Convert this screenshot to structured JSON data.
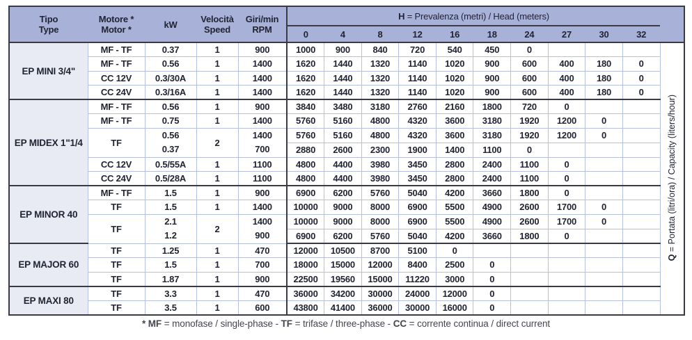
{
  "colors": {
    "header_bg": "#a8b2d8",
    "group_bg": "#e9ebf4",
    "border_dark": "#3a3a44",
    "border_light": "#b6c1de",
    "text": "#212432",
    "note": "#45454f"
  },
  "header": {
    "tipo": [
      "Tipo",
      "Type"
    ],
    "motore": [
      "Motore *",
      "Motor *"
    ],
    "kw": "kW",
    "speed": [
      "Velocità",
      "Speed"
    ],
    "rpm": [
      "Giri/min",
      "RPM"
    ],
    "h_bold": "H",
    "h_rest": " = Prevalenza (metri) / Head (meters)",
    "heads": [
      "0",
      "4",
      "8",
      "12",
      "16",
      "18",
      "24",
      "27",
      "30",
      "32"
    ]
  },
  "side": {
    "q_bold": "Q",
    "q_rest": " = Portata (litri/ora) / Capacity (liters/hour)"
  },
  "groups": [
    {
      "type": "EP MINI 3/4\"",
      "rows": [
        {
          "motor": "MF - TF",
          "kw": [
            "0.37"
          ],
          "speed": "1",
          "rpm": [
            "900"
          ],
          "data": [
            [
              "1000",
              "900",
              "840",
              "720",
              "540",
              "450",
              "0",
              "",
              "",
              ""
            ]
          ]
        },
        {
          "motor": "MF - TF",
          "kw": [
            "0.56"
          ],
          "speed": "1",
          "rpm": [
            "1400"
          ],
          "data": [
            [
              "1620",
              "1440",
              "1320",
              "1140",
              "1020",
              "900",
              "600",
              "400",
              "180",
              "0"
            ]
          ]
        },
        {
          "motor": "CC 12V",
          "kw": [
            "0.3/30A"
          ],
          "speed": "1",
          "rpm": [
            "1400"
          ],
          "data": [
            [
              "1620",
              "1440",
              "1320",
              "1140",
              "1020",
              "900",
              "600",
              "400",
              "180",
              "0"
            ]
          ]
        },
        {
          "motor": "CC 24V",
          "kw": [
            "0.3/16A"
          ],
          "speed": "1",
          "rpm": [
            "1400"
          ],
          "data": [
            [
              "1620",
              "1440",
              "1320",
              "1140",
              "1020",
              "900",
              "600",
              "400",
              "180",
              "0"
            ]
          ]
        }
      ]
    },
    {
      "type": "EP MIDEX 1\"1/4",
      "rows": [
        {
          "motor": "MF - TF",
          "kw": [
            "0.56"
          ],
          "speed": "1",
          "rpm": [
            "900"
          ],
          "data": [
            [
              "3840",
              "3480",
              "3180",
              "2760",
              "2160",
              "1800",
              "720",
              "0",
              "",
              ""
            ]
          ]
        },
        {
          "motor": "MF - TF",
          "kw": [
            "0.75"
          ],
          "speed": "1",
          "rpm": [
            "1400"
          ],
          "data": [
            [
              "5760",
              "5160",
              "4800",
              "4320",
              "3600",
              "3180",
              "1920",
              "1200",
              "0",
              ""
            ]
          ]
        },
        {
          "motor": "TF",
          "kw": [
            "0.56",
            "0.37"
          ],
          "speed": "2",
          "rpm": [
            "1400",
            "700"
          ],
          "data": [
            [
              "5760",
              "5160",
              "4800",
              "4320",
              "3600",
              "3180",
              "1920",
              "1200",
              "0",
              ""
            ],
            [
              "2880",
              "2600",
              "2300",
              "1900",
              "1400",
              "1100",
              "0",
              "",
              "",
              ""
            ]
          ]
        },
        {
          "motor": "CC 12V",
          "kw": [
            "0.5/55A"
          ],
          "speed": "1",
          "rpm": [
            "1100"
          ],
          "data": [
            [
              "4800",
              "4400",
              "3980",
              "3450",
              "2800",
              "2400",
              "1100",
              "0",
              "",
              ""
            ]
          ]
        },
        {
          "motor": "CC 24V",
          "kw": [
            "0.5/28A"
          ],
          "speed": "1",
          "rpm": [
            "1100"
          ],
          "data": [
            [
              "4800",
              "4400",
              "3980",
              "3450",
              "2800",
              "2400",
              "1100",
              "0",
              "",
              ""
            ]
          ]
        }
      ]
    },
    {
      "type": "EP MINOR 40",
      "rows": [
        {
          "motor": "MF - TF",
          "kw": [
            "1.5"
          ],
          "speed": "1",
          "rpm": [
            "900"
          ],
          "data": [
            [
              "6900",
              "6200",
              "5760",
              "5040",
              "4200",
              "3660",
              "1800",
              "0",
              "",
              ""
            ]
          ]
        },
        {
          "motor": "TF",
          "kw": [
            "1.5"
          ],
          "speed": "1",
          "rpm": [
            "1400"
          ],
          "data": [
            [
              "10000",
              "9000",
              "8000",
              "6900",
              "5500",
              "4900",
              "2600",
              "1700",
              "0",
              ""
            ]
          ]
        },
        {
          "motor": "TF",
          "kw": [
            "2.1",
            "1.2"
          ],
          "speed": "2",
          "rpm": [
            "1400",
            "900"
          ],
          "data": [
            [
              "10000",
              "9000",
              "8000",
              "6900",
              "5500",
              "4900",
              "2600",
              "1700",
              "0",
              ""
            ],
            [
              "6900",
              "6200",
              "5760",
              "5040",
              "4200",
              "3660",
              "1800",
              "0",
              "",
              ""
            ]
          ]
        }
      ]
    },
    {
      "type": "EP MAJOR 60",
      "rows": [
        {
          "motor": "TF",
          "kw": [
            "1.25"
          ],
          "speed": "1",
          "rpm": [
            "470"
          ],
          "data": [
            [
              "12000",
              "10500",
              "8700",
              "5100",
              "0",
              "",
              "",
              "",
              "",
              ""
            ]
          ]
        },
        {
          "motor": "TF",
          "kw": [
            "1.5"
          ],
          "speed": "1",
          "rpm": [
            "700"
          ],
          "data": [
            [
              "18000",
              "15000",
              "12000",
              "8400",
              "2500",
              "0",
              "",
              "",
              "",
              ""
            ]
          ]
        },
        {
          "motor": "TF",
          "kw": [
            "1.87"
          ],
          "speed": "1",
          "rpm": [
            "900"
          ],
          "data": [
            [
              "22500",
              "19560",
              "15000",
              "11220",
              "3000",
              "0",
              "",
              "",
              "",
              ""
            ]
          ]
        }
      ]
    },
    {
      "type": "EP MAXI 80",
      "rows": [
        {
          "motor": "TF",
          "kw": [
            "3.3"
          ],
          "speed": "1",
          "rpm": [
            "470"
          ],
          "data": [
            [
              "36000",
              "34200",
              "30000",
              "24000",
              "12000",
              "0",
              "",
              "",
              "",
              ""
            ]
          ]
        },
        {
          "motor": "TF",
          "kw": [
            "3.5"
          ],
          "speed": "1",
          "rpm": [
            "600"
          ],
          "data": [
            [
              "43800",
              "41400",
              "36000",
              "30000",
              "16000",
              "0",
              "",
              "",
              "",
              ""
            ]
          ]
        }
      ]
    }
  ],
  "footnote": {
    "segments": [
      {
        "text": "* MF",
        "bold": true
      },
      {
        "text": " = monofase / single-phase - ",
        "bold": false
      },
      {
        "text": "TF",
        "bold": true
      },
      {
        "text": " = trifase / three-phase - ",
        "bold": false
      },
      {
        "text": "CC",
        "bold": true
      },
      {
        "text": " = corrente continua / direct current",
        "bold": false
      }
    ]
  }
}
